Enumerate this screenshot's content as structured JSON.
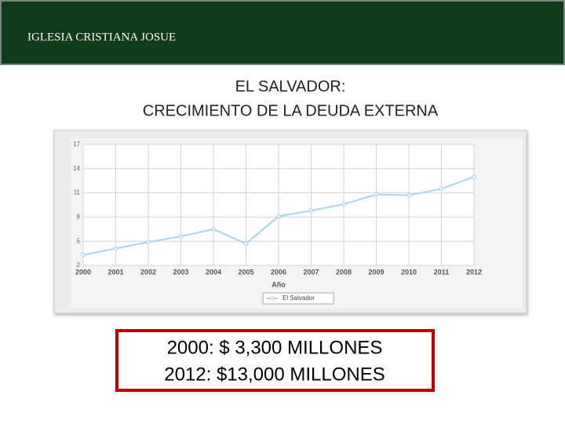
{
  "header": {
    "title": "IGLESIA CRISTIANA JOSUE"
  },
  "title_lines": [
    "EL SALVADOR:",
    "CRECIMIENTO DE LA DEUDA EXTERNA"
  ],
  "chart_data": {
    "type": "line",
    "categories": [
      "2000",
      "2001",
      "2002",
      "2003",
      "2004",
      "2005",
      "2006",
      "2007",
      "2008",
      "2009",
      "2010",
      "2011",
      "2012"
    ],
    "series": [
      {
        "name": "El Salvador",
        "color": "#a9d3ee",
        "values": [
          3.3,
          4.1,
          4.9,
          5.6,
          6.5,
          4.7,
          8.1,
          8.8,
          9.6,
          10.8,
          10.7,
          11.5,
          13.0
        ]
      }
    ],
    "xlabel": "Año",
    "ylim": [
      2,
      17
    ],
    "yticks": [
      2,
      5,
      8,
      11,
      14,
      17
    ],
    "grid": true,
    "legend": "bottom"
  },
  "box": [
    "2000: $ 3,300 MILLONES",
    "2012: $13,000 MILLONES"
  ]
}
